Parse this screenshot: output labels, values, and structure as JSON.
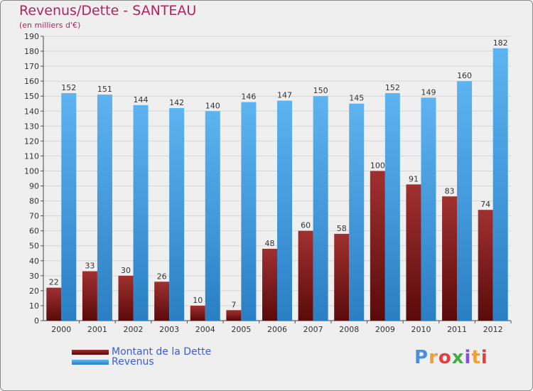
{
  "chart_data": {
    "type": "bar",
    "title": "Revenus/Dette - SANTEAU",
    "subtitle": "(en milliers d'€)",
    "categories": [
      "2000",
      "2001",
      "2002",
      "2003",
      "2004",
      "2005",
      "2006",
      "2007",
      "2008",
      "2009",
      "2010",
      "2011",
      "2012"
    ],
    "series": [
      {
        "name": "Montant de la Dette",
        "color": "#7a1a1a",
        "values": [
          22,
          33,
          30,
          26,
          10,
          7,
          48,
          60,
          58,
          100,
          91,
          83,
          74
        ]
      },
      {
        "name": "Revenus",
        "color": "#3a9be0",
        "values": [
          152,
          151,
          144,
          142,
          140,
          146,
          147,
          150,
          145,
          152,
          149,
          160,
          182
        ]
      }
    ],
    "ylim": [
      0,
      190
    ],
    "yticks": [
      0,
      10,
      20,
      30,
      40,
      50,
      60,
      70,
      80,
      90,
      100,
      110,
      120,
      130,
      140,
      150,
      160,
      170,
      180,
      190
    ],
    "grid": true,
    "legend": "bottom-left"
  },
  "logo": {
    "text": "Proxiti",
    "colors": [
      "#4a8fd8",
      "#f0a030",
      "#e04040",
      "#40b040",
      "#8a4fd0",
      "#f0a030",
      "#e04040"
    ]
  }
}
